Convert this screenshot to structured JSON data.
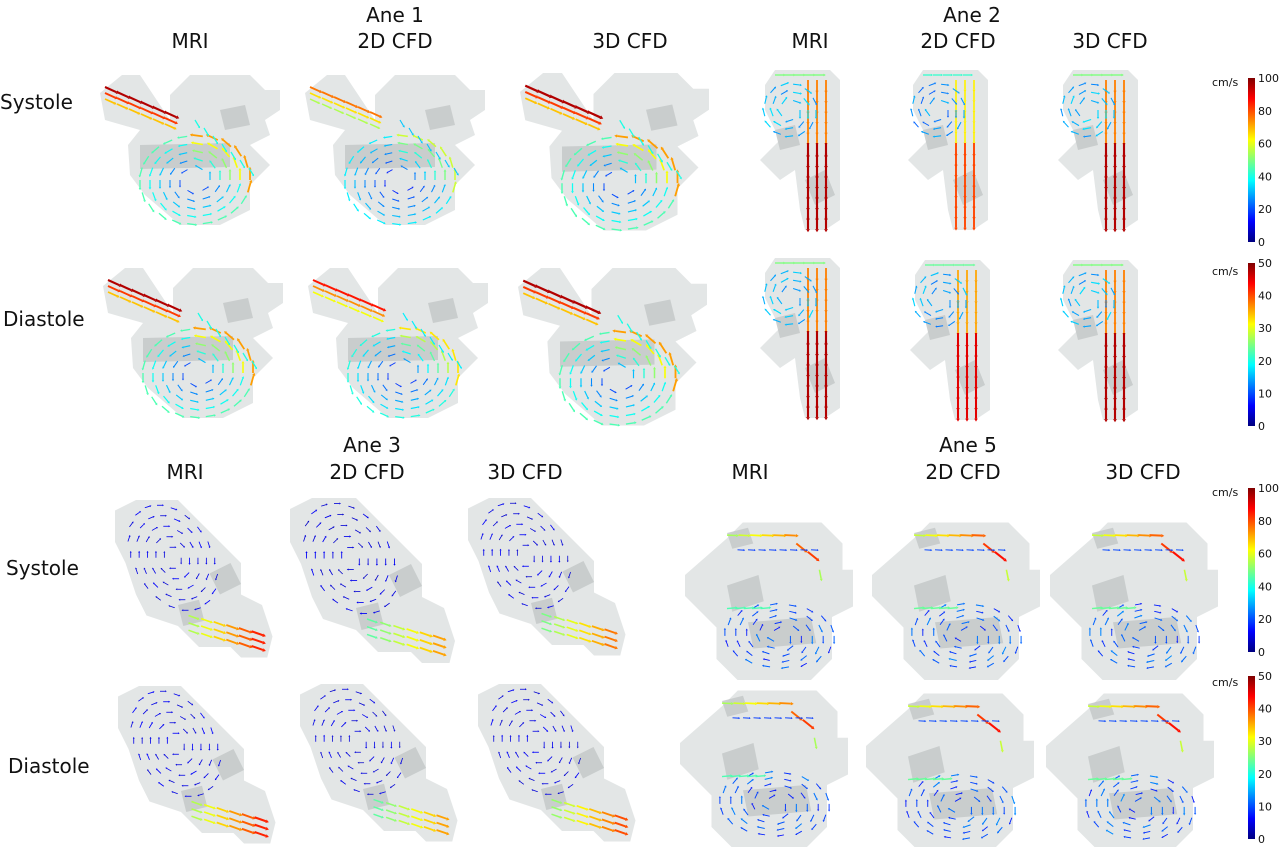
{
  "groups": [
    {
      "title": "Ane 1",
      "columns": [
        "MRI",
        "2D CFD",
        "3D CFD"
      ]
    },
    {
      "title": "Ane 2",
      "columns": [
        "MRI",
        "2D CFD",
        "3D CFD"
      ]
    },
    {
      "title": "Ane 3",
      "columns": [
        "MRI",
        "2D CFD",
        "3D CFD"
      ]
    },
    {
      "title": "Ane 5",
      "columns": [
        "MRI",
        "2D CFD",
        "3D CFD"
      ]
    }
  ],
  "rows": [
    "Systole",
    "Diastole",
    "Systole",
    "Diastole"
  ],
  "colorbars": [
    {
      "unit": "cm/s",
      "min": 0,
      "max": 100,
      "ticks": [
        0,
        20,
        40,
        60,
        80,
        100
      ],
      "phase": "Systole"
    },
    {
      "unit": "cm/s",
      "min": 0,
      "max": 50,
      "ticks": [
        0,
        10,
        20,
        30,
        40,
        50
      ],
      "phase": "Diastole"
    },
    {
      "unit": "cm/s",
      "min": 0,
      "max": 100,
      "ticks": [
        0,
        20,
        40,
        60,
        80,
        100
      ],
      "phase": "Systole"
    },
    {
      "unit": "cm/s",
      "min": 0,
      "max": 50,
      "ticks": [
        0,
        10,
        20,
        30,
        40,
        50
      ],
      "phase": "Diastole"
    }
  ],
  "colormap": [
    "#00007f",
    "#0000ff",
    "#007fff",
    "#00ffff",
    "#7fff7f",
    "#ffff00",
    "#ff7f00",
    "#ff0000",
    "#7f0000"
  ],
  "vessel_color": "#e3e6e6",
  "vessel_overlap_color": "#c4c8c8"
}
